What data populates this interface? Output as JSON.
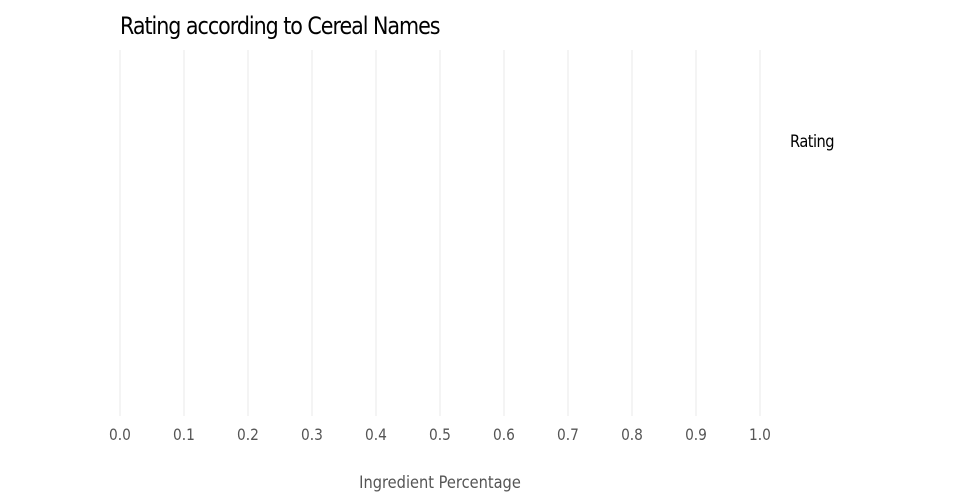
{
  "chart_data": {
    "type": "bar",
    "title": "Rating according to Cereal Names",
    "xlabel": "Ingredient Percentage",
    "ylabel": "",
    "xlim": [
      0,
      1
    ],
    "x_ticks": [
      "0.0",
      "0.1",
      "0.2",
      "0.3",
      "0.4",
      "0.5",
      "0.6",
      "0.7",
      "0.8",
      "0.9",
      "1.0"
    ],
    "categories": [],
    "series": [
      {
        "name": "Rating",
        "values": []
      }
    ],
    "grid": true,
    "legend_position": "right",
    "colors": {
      "grid": "#e8e8e8",
      "tick_text": "#555555",
      "title_text": "#000000"
    }
  }
}
